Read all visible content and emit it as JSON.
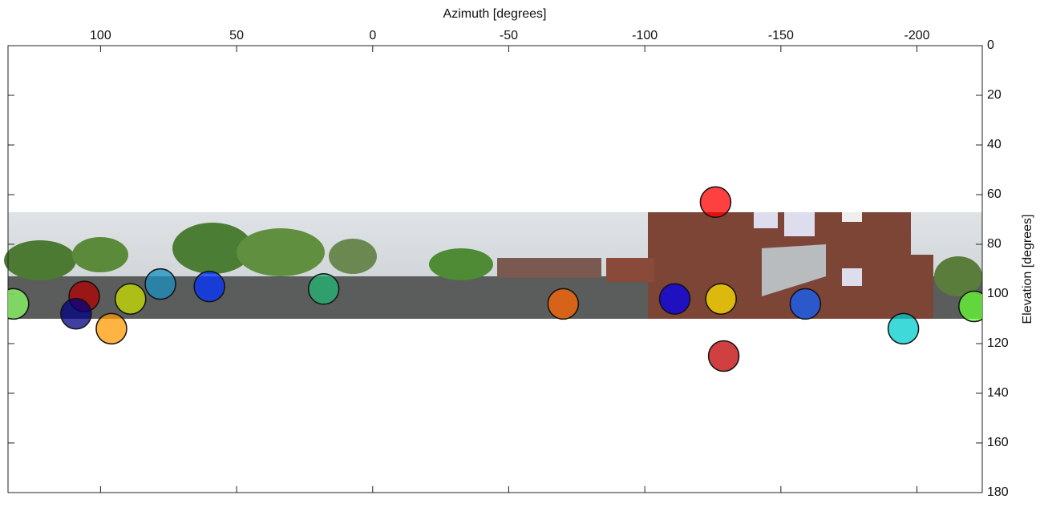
{
  "chart_data": {
    "type": "scatter",
    "x_label": "Azimuth [degrees]",
    "y_label": "Elevation [degrees]",
    "xlim": [
      134,
      -224
    ],
    "ylim": [
      0,
      180
    ],
    "xticks": [
      100,
      50,
      0,
      -50,
      -100,
      -150,
      -200
    ],
    "yticks": [
      0,
      20,
      40,
      60,
      80,
      100,
      120,
      140,
      160,
      180
    ],
    "y_reversed": true,
    "x": [
      132,
      106,
      109,
      96,
      89,
      78,
      60,
      18,
      -70,
      -111,
      -126,
      -128,
      -129,
      -159,
      -195,
      -221
    ],
    "values": [
      104,
      101,
      108,
      114,
      102,
      96,
      97,
      98,
      104,
      102,
      63,
      102,
      125,
      104,
      114,
      105
    ],
    "colors": [
      "#8cff66",
      "#b00000",
      "#000080",
      "#ff9900",
      "#c8e000",
      "#1a8fbf",
      "#0033ff",
      "#22b573",
      "#ff6600",
      "#0000ee",
      "#ff0000",
      "#ffe000",
      "#c00000",
      "#1060ff",
      "#00cccc",
      "#66ff33"
    ]
  }
}
